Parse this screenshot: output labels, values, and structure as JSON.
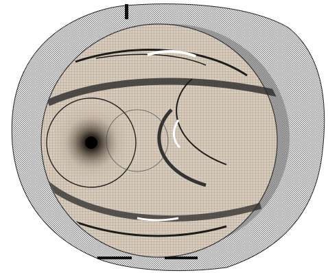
{
  "image": {
    "subject": "cfd-mesh-pump-volute",
    "colors": {
      "background": "#ffffff",
      "mesh_line": "#1a1a1a",
      "outer_casing_fill": "#f2f2f2",
      "inner_surface_fill": "#d9cdbf",
      "inner_surface_shade": "#c7b8a6",
      "hub_center": "#000000"
    }
  }
}
